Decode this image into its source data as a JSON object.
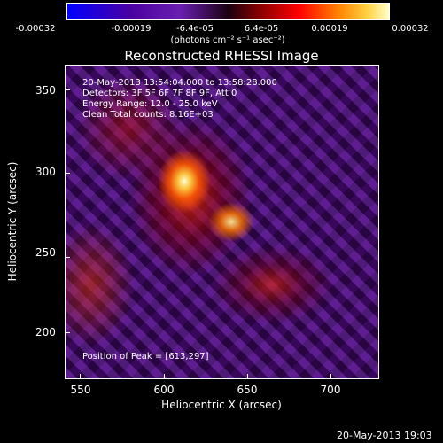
{
  "colorbar": {
    "ticks": [
      "-0.00032",
      "-0.00019",
      "-6.4e-05",
      "6.4e-05",
      "0.00019",
      "0.00032"
    ],
    "units": "(photons cm⁻² s⁻¹ asec⁻²)"
  },
  "title": "Reconstructed RHESSI Image",
  "info": {
    "time_range": "20-May-2013 13:54:04.000 to 13:58:28.000",
    "detectors": "Detectors: 3F 5F 6F 7F 8F 9F, Att 0",
    "energy_range": "Energy Range: 12.0 - 25.0 keV",
    "clean": "Clean    Total counts: 8.16E+03",
    "peak": "Position of Peak = [613,297]"
  },
  "axes": {
    "x_ticks": [
      "550",
      "600",
      "650",
      "700"
    ],
    "y_ticks": [
      "350",
      "300",
      "250",
      "200"
    ],
    "xlabel": "Heliocentric X (arcsec)",
    "ylabel": "Heliocentric Y (arcsec)"
  },
  "datestamp": "20-May-2013 19:03",
  "colors": {
    "background": "#000000",
    "colormap": [
      "#0000ff",
      "#6a1fb0",
      "#1a0010",
      "#ff0000",
      "#ff8000",
      "#ffffc8"
    ]
  }
}
